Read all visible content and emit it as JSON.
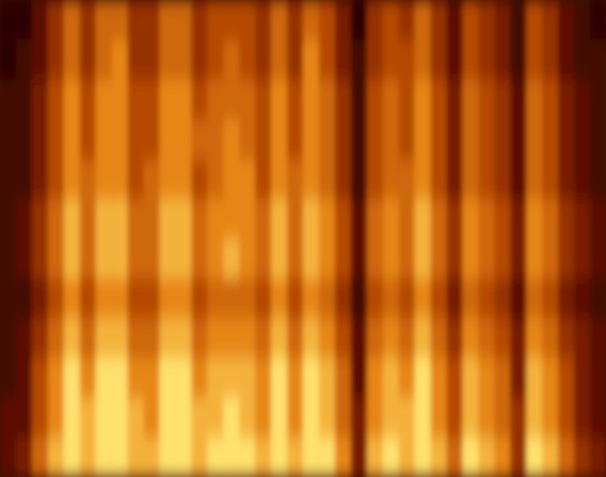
{
  "chart_data": {
    "type": "heatmap",
    "tick_labels": false,
    "grid": false,
    "cells": [
      [
        0,
        0,
        2,
        4,
        6,
        4,
        6,
        6,
        4,
        4,
        6,
        6,
        4,
        5,
        5,
        5,
        4,
        6,
        4,
        6,
        5,
        3,
        0,
        4,
        5,
        4,
        6,
        4,
        2,
        5,
        4,
        3,
        1,
        5,
        4,
        2,
        1,
        0
      ],
      [
        0,
        1,
        2,
        4,
        6,
        4,
        6,
        7,
        4,
        4,
        6,
        6,
        4,
        5,
        6,
        5,
        4,
        6,
        4,
        7,
        5,
        3,
        1,
        4,
        5,
        5,
        6,
        4,
        2,
        5,
        4,
        3,
        1,
        5,
        4,
        2,
        1,
        1
      ],
      [
        1,
        1,
        3,
        5,
        7,
        5,
        7,
        7,
        5,
        5,
        7,
        7,
        5,
        6,
        6,
        6,
        5,
        7,
        5,
        7,
        6,
        4,
        1,
        5,
        6,
        5,
        7,
        5,
        3,
        6,
        5,
        4,
        2,
        6,
        5,
        3,
        2,
        1
      ],
      [
        1,
        1,
        3,
        5,
        7,
        5,
        7,
        7,
        5,
        5,
        7,
        7,
        6,
        6,
        7,
        6,
        5,
        7,
        5,
        7,
        6,
        4,
        1,
        5,
        6,
        5,
        7,
        5,
        3,
        6,
        5,
        4,
        2,
        6,
        5,
        3,
        2,
        1
      ],
      [
        1,
        1,
        3,
        5,
        7,
        6,
        7,
        7,
        5,
        6,
        7,
        7,
        5,
        6,
        7,
        7,
        5,
        7,
        6,
        7,
        6,
        4,
        1,
        5,
        6,
        6,
        7,
        5,
        3,
        6,
        5,
        4,
        2,
        6,
        5,
        3,
        2,
        1
      ],
      [
        1,
        2,
        4,
        6,
        8,
        6,
        8,
        8,
        6,
        6,
        8,
        8,
        6,
        7,
        7,
        7,
        6,
        8,
        6,
        8,
        7,
        5,
        2,
        6,
        7,
        6,
        8,
        6,
        4,
        7,
        6,
        5,
        3,
        7,
        6,
        4,
        3,
        2
      ],
      [
        1,
        2,
        4,
        6,
        8,
        6,
        8,
        8,
        6,
        6,
        8,
        8,
        6,
        7,
        8,
        7,
        6,
        8,
        6,
        8,
        7,
        5,
        2,
        6,
        7,
        6,
        8,
        6,
        4,
        7,
        6,
        5,
        3,
        7,
        6,
        4,
        3,
        2
      ],
      [
        1,
        1,
        3,
        5,
        7,
        5,
        7,
        7,
        5,
        5,
        7,
        7,
        5,
        6,
        6,
        6,
        5,
        7,
        5,
        7,
        6,
        4,
        1,
        5,
        6,
        5,
        7,
        5,
        3,
        6,
        5,
        4,
        2,
        6,
        5,
        3,
        2,
        1
      ],
      [
        1,
        2,
        4,
        6,
        8,
        6,
        8,
        8,
        6,
        6,
        8,
        8,
        6,
        7,
        7,
        7,
        6,
        8,
        6,
        8,
        7,
        5,
        2,
        6,
        7,
        6,
        8,
        6,
        4,
        7,
        6,
        5,
        3,
        7,
        6,
        4,
        3,
        2
      ],
      [
        1,
        2,
        5,
        7,
        9,
        7,
        9,
        9,
        7,
        7,
        9,
        9,
        7,
        8,
        8,
        8,
        7,
        9,
        7,
        9,
        8,
        6,
        2,
        7,
        8,
        7,
        9,
        7,
        5,
        8,
        7,
        6,
        3,
        8,
        7,
        5,
        3,
        2
      ],
      [
        2,
        2,
        5,
        7,
        9,
        8,
        9,
        9,
        8,
        7,
        9,
        9,
        8,
        8,
        9,
        8,
        7,
        9,
        7,
        9,
        8,
        6,
        3,
        7,
        8,
        8,
        9,
        7,
        5,
        8,
        7,
        6,
        4,
        8,
        7,
        5,
        3,
        2
      ],
      [
        2,
        3,
        6,
        8,
        9,
        8,
        9,
        9,
        8,
        8,
        9,
        9,
        8,
        9,
        9,
        9,
        8,
        9,
        8,
        9,
        9,
        7,
        3,
        8,
        9,
        8,
        9,
        8,
        6,
        9,
        8,
        7,
        4,
        9,
        8,
        6,
        4,
        3
      ]
    ]
  }
}
